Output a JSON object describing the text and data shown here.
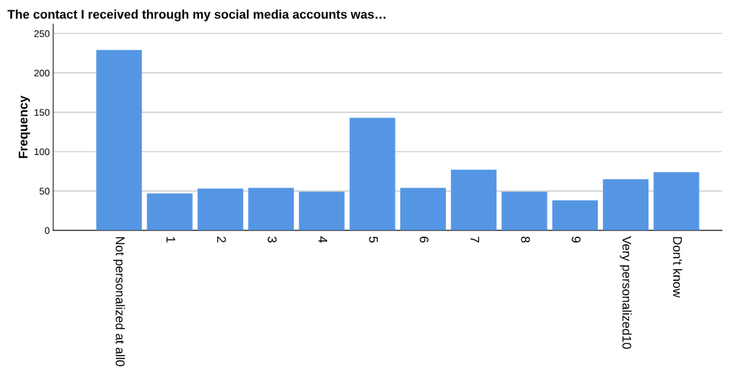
{
  "chart_data": {
    "type": "bar",
    "title": "The contact I received through my social media accounts was…",
    "ylabel": "Frequency",
    "categories": [
      "Not personalized at all0",
      "1",
      "2",
      "3",
      "4",
      "5",
      "6",
      "7",
      "8",
      "9",
      "Very personalized10",
      "Don't know"
    ],
    "values": [
      229,
      47,
      53,
      54,
      49,
      143,
      54,
      77,
      49,
      38,
      65,
      74
    ],
    "color": "#5596e4",
    "ylim": [
      0,
      262
    ],
    "yticks": [
      0,
      50,
      100,
      150,
      200,
      250
    ],
    "grid": "y"
  }
}
